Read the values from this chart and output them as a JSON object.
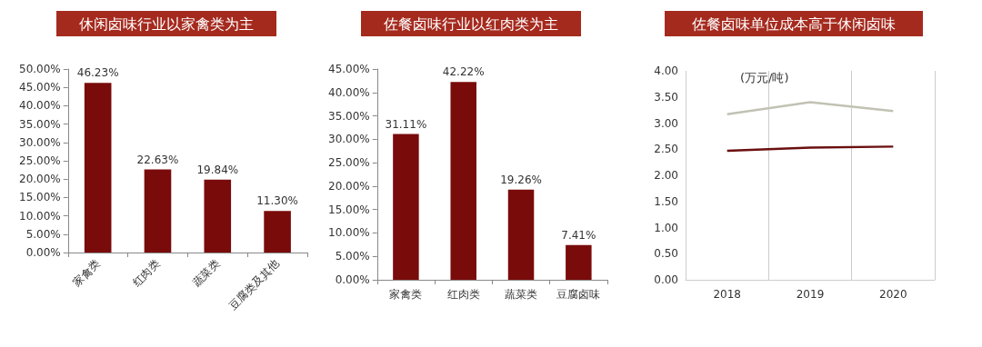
{
  "chart_data": [
    {
      "type": "bar",
      "title": "休闲卤味行业以家禽类为主",
      "categories": [
        "家禽类",
        "红肉类",
        "蔬菜类",
        "豆腐类及其他"
      ],
      "values": [
        46.23,
        22.63,
        19.84,
        11.3
      ],
      "color": "#7a0b0b",
      "value_labels": [
        "46.23%",
        "22.63%",
        "19.84%",
        "11.30%"
      ],
      "ylim": [
        0,
        50
      ],
      "yticks": [
        {
          "value": 0,
          "label": "0.00%"
        },
        {
          "value": 5,
          "label": "5.00%"
        },
        {
          "value": 10,
          "label": "10.00%"
        },
        {
          "value": 15,
          "label": "15.00%"
        },
        {
          "value": 20,
          "label": "20.00%"
        },
        {
          "value": 25,
          "label": "25.00%"
        },
        {
          "value": 30,
          "label": "30.00%"
        },
        {
          "value": 35,
          "label": "35.00%"
        },
        {
          "value": 40,
          "label": "40.00%"
        },
        {
          "value": 45,
          "label": "45.00%"
        },
        {
          "value": 50,
          "label": "50.00%"
        }
      ],
      "grid": false
    },
    {
      "type": "bar",
      "title": "佐餐卤味行业以红肉类为主",
      "categories": [
        "家禽类",
        "红肉类",
        "蔬菜类",
        "豆腐卤味"
      ],
      "values": [
        31.11,
        42.22,
        19.26,
        7.41
      ],
      "color": "#7a0b0b",
      "value_labels": [
        "31.11%",
        "42.22%",
        "19.26%",
        "7.41%"
      ],
      "ylim": [
        0,
        45
      ],
      "yticks": [
        {
          "value": 0,
          "label": "0.00%"
        },
        {
          "value": 5,
          "label": "5.00%"
        },
        {
          "value": 10,
          "label": "10.00%"
        },
        {
          "value": 15,
          "label": "15.00%"
        },
        {
          "value": 20,
          "label": "20.00%"
        },
        {
          "value": 25,
          "label": "25.00%"
        },
        {
          "value": 30,
          "label": "30.00%"
        },
        {
          "value": 35,
          "label": "35.00%"
        },
        {
          "value": 40,
          "label": "40.00%"
        },
        {
          "value": 45,
          "label": "45.00%"
        }
      ],
      "grid": false
    },
    {
      "type": "line",
      "title": "佐餐卤味单位成本高于休闲卤味",
      "ylabel": "(万元/吨)",
      "categories": [
        "2018",
        "2019",
        "2020"
      ],
      "series": [
        {
          "color": "#6b0f0f",
          "values": [
            2.47,
            2.53,
            2.55
          ]
        },
        {
          "color": "#c2c2b4",
          "values": [
            3.17,
            3.4,
            3.23
          ]
        }
      ],
      "ylim": [
        0,
        4
      ],
      "yticks": [
        {
          "value": 0,
          "label": "0.00"
        },
        {
          "value": 0.5,
          "label": "0.50"
        },
        {
          "value": 1,
          "label": "1.00"
        },
        {
          "value": 1.5,
          "label": "1.50"
        },
        {
          "value": 2,
          "label": "2.00"
        },
        {
          "value": 2.5,
          "label": "2.50"
        },
        {
          "value": 3,
          "label": "3.00"
        },
        {
          "value": 3.5,
          "label": "3.50"
        },
        {
          "value": 4,
          "label": "4.00"
        }
      ],
      "grid": "x",
      "marker": "none"
    }
  ]
}
